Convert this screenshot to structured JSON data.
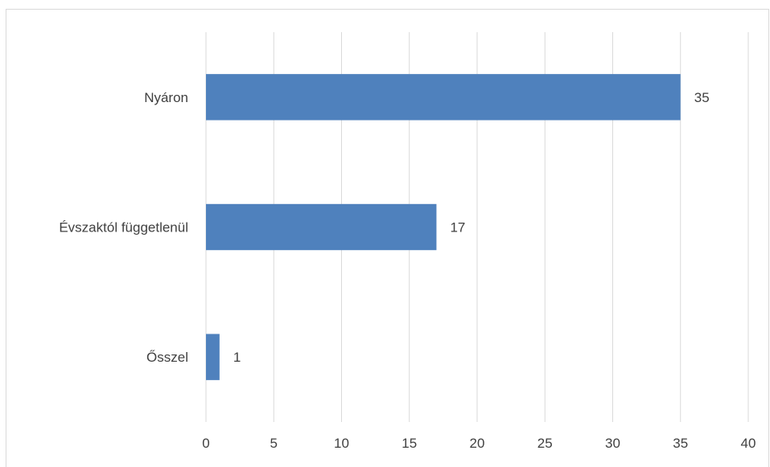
{
  "chart_data": {
    "type": "bar",
    "orientation": "horizontal",
    "categories": [
      "Nyáron",
      "Évszaktól függetlenül",
      "Ősszel"
    ],
    "values": [
      35,
      17,
      1
    ],
    "data_labels": [
      "35",
      "17",
      "1"
    ],
    "xlim": [
      0,
      40
    ],
    "x_ticks": [
      0,
      5,
      10,
      15,
      20,
      25,
      30,
      35,
      40
    ],
    "x_tick_labels": [
      "0",
      "5",
      "10",
      "15",
      "20",
      "25",
      "30",
      "35",
      "40"
    ],
    "title": "",
    "xlabel": "",
    "ylabel": "",
    "grid": "vertical",
    "legend": "none",
    "colors": {
      "bar": "#4f81bd",
      "grid": "#d9d9d9",
      "text": "#404040",
      "frame": "#d9d9d9"
    }
  }
}
